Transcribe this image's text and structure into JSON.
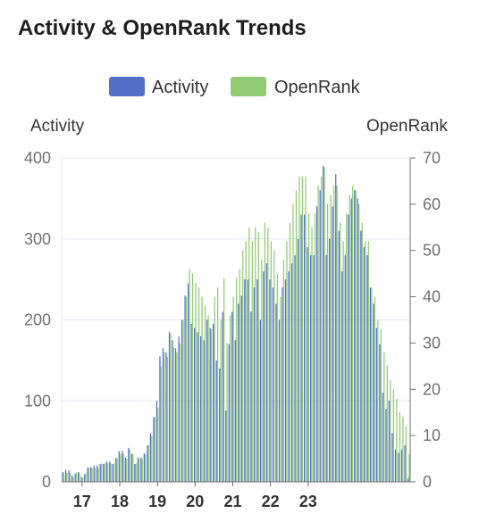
{
  "chart_data": {
    "type": "bar",
    "title": "Activity & OpenRank Trends",
    "x_start_month": "2016-07",
    "x_tick_labels": [
      "17",
      "18",
      "19",
      "20",
      "21",
      "22",
      "23"
    ],
    "y_left": {
      "label": "Activity",
      "min": 0,
      "max": 400,
      "ticks": [
        0,
        100,
        200,
        300,
        400
      ]
    },
    "y_right": {
      "label": "OpenRank",
      "min": 0,
      "max": 70,
      "ticks": [
        0,
        10,
        20,
        30,
        40,
        50,
        60,
        70
      ]
    },
    "legend": {
      "placement": "top-center"
    },
    "series": [
      {
        "name": "Activity",
        "axis": "left",
        "color": "#5470c6",
        "values": [
          12,
          15,
          14,
          8,
          10,
          12,
          6,
          9,
          18,
          18,
          20,
          20,
          22,
          22,
          25,
          25,
          22,
          30,
          38,
          38,
          30,
          42,
          35,
          22,
          30,
          30,
          35,
          45,
          60,
          80,
          100,
          155,
          165,
          160,
          185,
          175,
          165,
          180,
          200,
          230,
          245,
          195,
          190,
          185,
          180,
          175,
          200,
          190,
          195,
          150,
          140,
          210,
          88,
          170,
          210,
          175,
          220,
          230,
          250,
          250,
          210,
          240,
          250,
          200,
          260,
          270,
          250,
          240,
          220,
          200,
          240,
          250,
          260,
          270,
          280,
          300,
          330,
          330,
          290,
          280,
          280,
          340,
          360,
          390,
          280,
          300,
          340,
          380,
          310,
          260,
          280,
          330,
          350,
          360,
          350,
          310,
          290,
          280,
          240,
          220,
          190,
          170,
          110,
          90,
          100,
          60,
          40,
          36,
          40,
          45,
          5
        ]
      },
      {
        "name": "OpenRank",
        "axis": "right",
        "color": "#91cc75",
        "values": [
          2,
          2,
          2,
          1,
          2,
          2,
          1,
          2,
          3,
          3,
          3,
          3,
          4,
          4,
          4,
          4,
          4,
          5,
          6,
          6,
          5,
          7,
          6,
          4,
          5,
          5,
          6,
          8,
          10,
          14,
          16,
          25,
          28,
          27,
          32,
          29,
          28,
          30,
          35,
          40,
          46,
          45,
          43,
          42,
          40,
          38,
          36,
          33,
          40,
          42,
          35,
          44,
          30,
          36,
          40,
          44,
          46,
          50,
          52,
          55,
          52,
          55,
          54,
          48,
          56,
          55,
          52,
          50,
          45,
          40,
          48,
          52,
          56,
          60,
          63,
          66,
          66,
          66,
          58,
          55,
          58,
          64,
          66,
          68,
          60,
          62,
          64,
          64,
          56,
          52,
          58,
          62,
          64,
          63,
          60,
          56,
          52,
          52,
          42,
          40,
          35,
          33,
          28,
          25,
          22,
          20,
          18,
          15,
          14,
          12,
          6
        ]
      }
    ]
  }
}
